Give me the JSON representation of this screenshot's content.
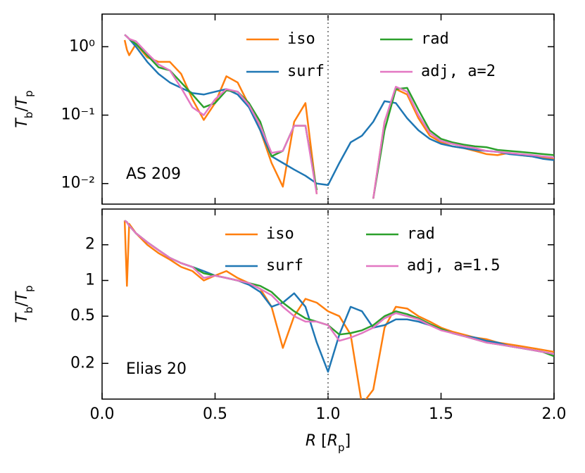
{
  "chart_data": [
    {
      "type": "line",
      "log_y": true,
      "annotation": "AS 209",
      "ylabel": "Tb/Tp",
      "vline": 1,
      "xlim": [
        0,
        2
      ],
      "xticks": [
        0,
        0.5,
        1,
        1.5,
        2
      ],
      "ylim": [
        0.005,
        3
      ],
      "yticks": [
        {
          "value": 1,
          "label": "10⁰"
        },
        {
          "value": 0.1,
          "label": "10⁻¹"
        },
        {
          "value": 0.01,
          "label": "10⁻²"
        }
      ],
      "x": [
        0.1,
        0.11,
        0.12,
        0.15,
        0.2,
        0.25,
        0.3,
        0.35,
        0.4,
        0.45,
        0.5,
        0.55,
        0.6,
        0.65,
        0.7,
        0.75,
        0.8,
        0.85,
        0.9,
        0.95,
        1.0,
        1.05,
        1.1,
        1.15,
        1.2,
        1.25,
        1.3,
        1.35,
        1.4,
        1.45,
        1.5,
        1.55,
        1.6,
        1.65,
        1.7,
        1.75,
        1.8,
        1.85,
        1.9,
        1.95,
        2.0
      ],
      "series": [
        {
          "name": "iso",
          "color": "#ff7f0e",
          "values": [
            1.25,
            0.9,
            0.75,
            1.1,
            0.7,
            0.6,
            0.6,
            0.4,
            0.17,
            0.085,
            0.15,
            0.37,
            0.3,
            0.14,
            0.06,
            0.02,
            0.009,
            0.08,
            0.15,
            0.007,
            null,
            null,
            null,
            null,
            0.006,
            0.08,
            0.24,
            0.2,
            0.09,
            0.05,
            0.04,
            0.035,
            0.033,
            0.03,
            0.027,
            0.026,
            0.028,
            0.026,
            0.025,
            0.024,
            0.023
          ]
        },
        {
          "name": "surf",
          "color": "#1f77b4",
          "values": [
            1.5,
            1.4,
            1.3,
            1.0,
            0.6,
            0.4,
            0.3,
            0.25,
            0.21,
            0.2,
            0.22,
            0.24,
            0.2,
            0.13,
            0.06,
            0.025,
            0.02,
            0.016,
            0.013,
            0.01,
            0.0095,
            0.02,
            0.04,
            0.05,
            0.08,
            0.16,
            0.15,
            0.09,
            0.06,
            0.045,
            0.038,
            0.035,
            0.033,
            0.031,
            0.03,
            0.029,
            0.027,
            0.026,
            0.025,
            0.023,
            0.022
          ]
        },
        {
          "name": "rad",
          "color": "#2ca02c",
          "values": [
            1.5,
            1.4,
            1.3,
            1.1,
            0.75,
            0.5,
            0.45,
            0.3,
            0.2,
            0.13,
            0.15,
            0.23,
            0.22,
            0.15,
            0.08,
            0.025,
            0.03,
            0.07,
            0.07,
            0.008,
            null,
            null,
            null,
            null,
            0.006,
            0.06,
            0.24,
            0.25,
            0.12,
            0.06,
            0.045,
            0.04,
            0.037,
            0.035,
            0.034,
            0.031,
            0.03,
            0.029,
            0.028,
            0.027,
            0.026
          ]
        },
        {
          "name": "adj, a=2",
          "color": "#e377c2",
          "values": [
            1.5,
            1.4,
            1.3,
            1.2,
            0.8,
            0.55,
            0.45,
            0.25,
            0.13,
            0.1,
            0.17,
            0.24,
            0.22,
            0.14,
            0.07,
            0.028,
            0.03,
            0.07,
            0.07,
            0.007,
            null,
            null,
            null,
            null,
            0.006,
            0.08,
            0.26,
            0.22,
            0.1,
            0.055,
            0.042,
            0.038,
            0.035,
            0.033,
            0.03,
            0.029,
            0.028,
            0.027,
            0.026,
            0.025,
            0.024
          ]
        }
      ]
    },
    {
      "type": "line",
      "log_y": true,
      "annotation": "Elias 20",
      "ylabel": "Tb/Tp",
      "xlabel": "R [Rp]",
      "vline": 1,
      "xlim": [
        0,
        2
      ],
      "xticks": [
        {
          "value": 0,
          "label": "0.0"
        },
        {
          "value": 0.5,
          "label": "0.5"
        },
        {
          "value": 1,
          "label": "1.0"
        },
        {
          "value": 1.5,
          "label": "1.5"
        },
        {
          "value": 2,
          "label": "2.0"
        }
      ],
      "ylim": [
        0.1,
        4
      ],
      "yticks": [
        2,
        1,
        0.5,
        0.2
      ],
      "x": [
        0.1,
        0.11,
        0.12,
        0.15,
        0.2,
        0.25,
        0.3,
        0.35,
        0.4,
        0.45,
        0.5,
        0.55,
        0.6,
        0.65,
        0.7,
        0.75,
        0.8,
        0.85,
        0.9,
        0.95,
        1.0,
        1.05,
        1.1,
        1.15,
        1.2,
        1.25,
        1.3,
        1.35,
        1.4,
        1.45,
        1.5,
        1.55,
        1.6,
        1.65,
        1.7,
        1.75,
        1.8,
        1.85,
        1.9,
        1.95,
        2.0
      ],
      "series": [
        {
          "name": "iso",
          "color": "#ff7f0e",
          "values": [
            3.2,
            0.9,
            3.0,
            2.5,
            2.0,
            1.7,
            1.5,
            1.3,
            1.2,
            1.0,
            1.1,
            1.2,
            1.05,
            0.95,
            0.85,
            0.6,
            0.27,
            0.5,
            0.7,
            0.65,
            0.55,
            0.5,
            0.35,
            0.09,
            0.12,
            0.4,
            0.6,
            0.58,
            0.5,
            0.45,
            0.4,
            0.37,
            0.35,
            0.33,
            0.32,
            0.3,
            0.29,
            0.28,
            0.27,
            0.26,
            0.25
          ]
        },
        {
          "name": "surf",
          "color": "#1f77b4",
          "values": [
            3.2,
            3.1,
            2.9,
            2.5,
            2.1,
            1.8,
            1.55,
            1.4,
            1.3,
            1.2,
            1.1,
            1.05,
            1.0,
            0.92,
            0.8,
            0.6,
            0.65,
            0.78,
            0.6,
            0.3,
            0.17,
            0.35,
            0.6,
            0.55,
            0.4,
            0.42,
            0.47,
            0.47,
            0.45,
            0.42,
            0.39,
            0.36,
            0.34,
            0.33,
            0.31,
            0.3,
            0.28,
            0.27,
            0.26,
            0.25,
            0.24
          ]
        },
        {
          "name": "rad",
          "color": "#2ca02c",
          "values": [
            3.2,
            3.1,
            2.9,
            2.5,
            2.1,
            1.8,
            1.55,
            1.4,
            1.3,
            1.15,
            1.1,
            1.05,
            1.0,
            0.95,
            0.9,
            0.8,
            0.65,
            0.55,
            0.48,
            0.45,
            0.42,
            0.35,
            0.36,
            0.38,
            0.42,
            0.5,
            0.55,
            0.52,
            0.48,
            0.43,
            0.39,
            0.36,
            0.34,
            0.32,
            0.3,
            0.29,
            0.28,
            0.27,
            0.26,
            0.25,
            0.23
          ]
        },
        {
          "name": "adj, a=1.5",
          "color": "#e377c2",
          "values": [
            3.2,
            3.1,
            2.9,
            2.5,
            2.1,
            1.8,
            1.55,
            1.4,
            1.3,
            1.05,
            1.1,
            1.05,
            1.0,
            0.95,
            0.85,
            0.75,
            0.6,
            0.5,
            0.45,
            0.45,
            0.42,
            0.31,
            0.33,
            0.36,
            0.4,
            0.48,
            0.53,
            0.5,
            0.47,
            0.42,
            0.38,
            0.36,
            0.34,
            0.32,
            0.3,
            0.29,
            0.28,
            0.27,
            0.26,
            0.25,
            0.24
          ]
        }
      ]
    }
  ]
}
